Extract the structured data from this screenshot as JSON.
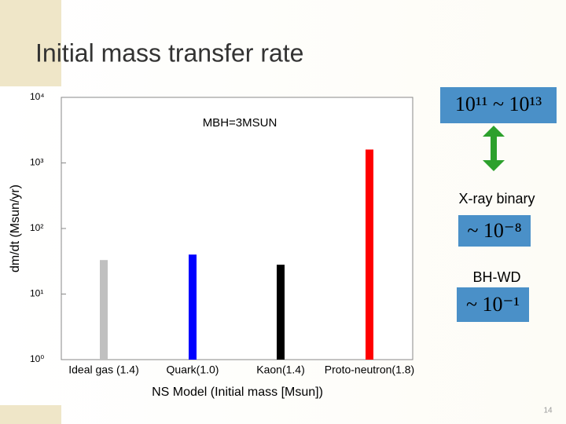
{
  "slide": {
    "title": "Initial mass transfer rate",
    "page_number": "14"
  },
  "chart_data": {
    "type": "bar",
    "ylabel": "dm/dt (Msun/yr)",
    "xlabel": "NS Model (Initial mass [Msun])",
    "annotation": "MBH=3MSUN",
    "categories": [
      "Ideal gas (1.4)",
      "Quark(1.0)",
      "Kaon(1.4)",
      "Proto-neutron(1.8)"
    ],
    "values": [
      33,
      40,
      28,
      1600
    ],
    "colors": [
      "#c0c0c0",
      "#0000ff",
      "#000000",
      "#ff0000"
    ],
    "log_scale": true,
    "ylim": [
      1,
      10000
    ],
    "yticks": [
      {
        "value": 1,
        "label": "10⁰"
      },
      {
        "value": 10,
        "label": "10¹"
      },
      {
        "value": 100,
        "label": "10²"
      },
      {
        "value": 1000,
        "label": "10³"
      },
      {
        "value": 10000,
        "label": "10⁴"
      }
    ]
  },
  "side_panel": {
    "top_box": "10¹¹ ~ 10¹³",
    "label_1": "X-ray binary",
    "box_1": "~ 10⁻⁸",
    "label_2": "BH-WD",
    "box_2": "~ 10⁻¹"
  }
}
